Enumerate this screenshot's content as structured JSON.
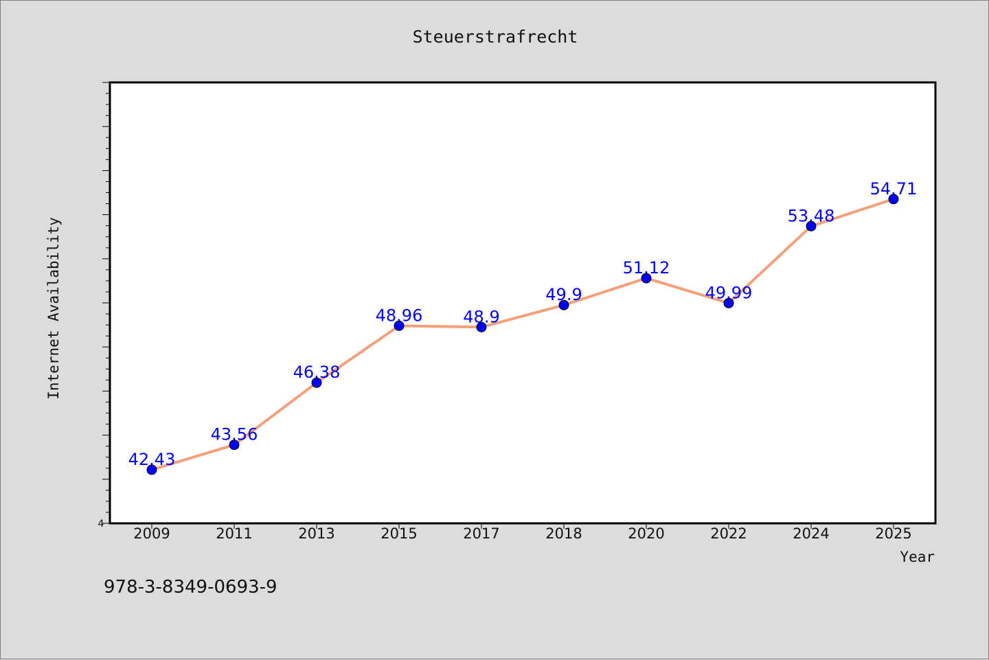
{
  "chart_data": {
    "type": "line",
    "title": "Steuerstrafrecht",
    "xlabel": "Year",
    "ylabel": "Internet Availability",
    "categories": [
      "2009",
      "2011",
      "2013",
      "2015",
      "2017",
      "2018",
      "2020",
      "2022",
      "2024",
      "2025"
    ],
    "series": [
      {
        "values": [
          42.43,
          43.56,
          46.38,
          48.96,
          48.9,
          49.9,
          51.12,
          49.99,
          53.48,
          54.71
        ],
        "labels": [
          "42.43",
          "43.56",
          "46.38",
          "48.96",
          "48.9",
          "49.9",
          "51.12",
          "49.99",
          "53.48",
          "54.71"
        ],
        "line_color": "#f4a07a",
        "marker_color": "#0000ff"
      }
    ],
    "ylim": [
      40,
      60
    ],
    "y_tick_label": "4",
    "grid": false,
    "legend": "none"
  },
  "footer": {
    "isbn": "978-3-8349-0693-9"
  }
}
